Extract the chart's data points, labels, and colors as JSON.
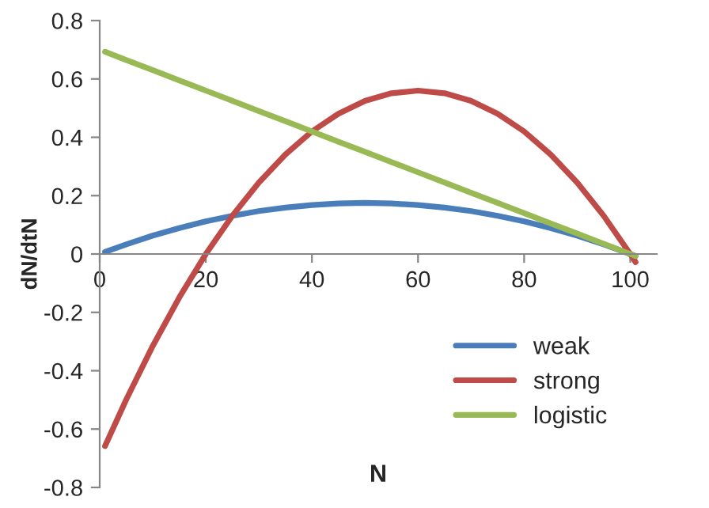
{
  "chart_data": {
    "type": "line",
    "xlabel": "N",
    "ylabel": "dN/dtN",
    "x": [
      1,
      5,
      10,
      15,
      20,
      25,
      30,
      35,
      40,
      45,
      50,
      55,
      60,
      65,
      70,
      75,
      80,
      85,
      90,
      95,
      100,
      101
    ],
    "series": [
      {
        "name": "weak",
        "color": "#4a7ebb",
        "values": [
          0.007,
          0.033,
          0.063,
          0.089,
          0.112,
          0.131,
          0.147,
          0.159,
          0.168,
          0.173,
          0.175,
          0.173,
          0.168,
          0.159,
          0.147,
          0.131,
          0.112,
          0.089,
          0.063,
          0.033,
          0,
          -0.007
        ]
      },
      {
        "name": "strong",
        "color": "#be4b48",
        "values": [
          -0.658,
          -0.499,
          -0.315,
          -0.149,
          0,
          0.131,
          0.245,
          0.341,
          0.42,
          0.481,
          0.525,
          0.551,
          0.56,
          0.551,
          0.525,
          0.481,
          0.42,
          0.341,
          0.245,
          0.131,
          0,
          -0.028
        ]
      },
      {
        "name": "logistic",
        "color": "#98b954",
        "values": [
          0.693,
          0.665,
          0.63,
          0.595,
          0.56,
          0.525,
          0.49,
          0.455,
          0.42,
          0.385,
          0.35,
          0.315,
          0.28,
          0.245,
          0.21,
          0.175,
          0.14,
          0.105,
          0.07,
          0.035,
          0,
          -0.007
        ]
      }
    ],
    "xlim": [
      0,
      105
    ],
    "xticks": [
      0,
      20,
      40,
      60,
      80,
      100
    ],
    "ylim": [
      -0.8,
      0.8
    ],
    "yticks": [
      -0.8,
      -0.6,
      -0.4,
      -0.2,
      0,
      0.2,
      0.4,
      0.6,
      0.8
    ],
    "grid": false,
    "legend": "bottom right",
    "marker": "none",
    "line_style": "solid"
  }
}
